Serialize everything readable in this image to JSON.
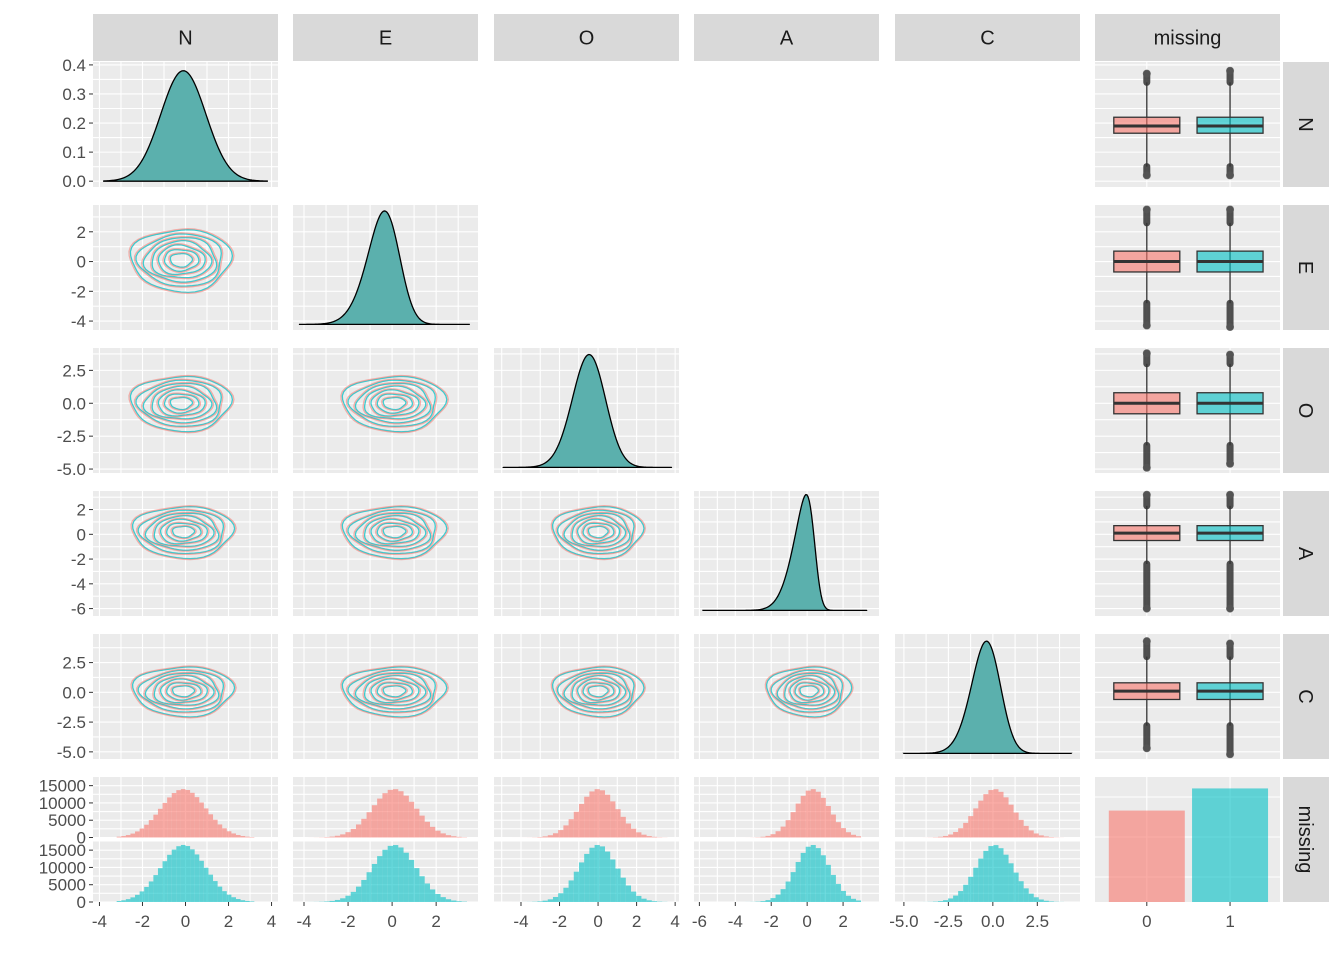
{
  "chart_data": {
    "type": "pairs",
    "variables": [
      "N",
      "E",
      "O",
      "A",
      "C",
      "missing"
    ],
    "groups": [
      "0",
      "1"
    ],
    "colors": {
      "group_0": "#F8766D",
      "group_1": "#00BFC4",
      "density_fill": "#5BB0AD",
      "panel_bg": "#EBEBEB",
      "strip_bg": "#D9D9D9",
      "grid": "#FFFFFF",
      "axis_text": "#4D4D4D",
      "strip_text": "#1A1A1A"
    },
    "grid": true,
    "legend": "none",
    "column_axes": [
      {
        "var": "N",
        "xlim": [
          -4.3,
          4.3
        ],
        "ticks": [
          -4,
          -2,
          0,
          2,
          4
        ],
        "tick_labels": [
          "-4",
          "-2",
          "0",
          "2",
          "4"
        ]
      },
      {
        "var": "E",
        "xlim": [
          -4.5,
          3.9
        ],
        "ticks": [
          -4,
          -2,
          0,
          2
        ],
        "tick_labels": [
          "-4",
          "-2",
          "0",
          "2"
        ]
      },
      {
        "var": "O",
        "xlim": [
          -5.4,
          4.2
        ],
        "ticks": [
          -4,
          -2,
          0,
          2,
          4
        ],
        "tick_labels": [
          "-4",
          "-2",
          "0",
          "2",
          "4"
        ]
      },
      {
        "var": "A",
        "xlim": [
          -6.3,
          4.0
        ],
        "ticks": [
          -6,
          -4,
          -2,
          0,
          2
        ],
        "tick_labels": [
          "-6",
          "-4",
          "-2",
          "0",
          "2"
        ]
      },
      {
        "var": "C",
        "xlim": [
          -5.5,
          4.9
        ],
        "ticks": [
          -5,
          -2.5,
          0,
          2.5
        ],
        "tick_labels": [
          "-5.0",
          "-2.5",
          "0.0",
          "2.5"
        ]
      },
      {
        "var": "missing",
        "categories": [
          "0",
          "1"
        ],
        "tick_labels": [
          "0",
          "1"
        ]
      }
    ],
    "row_axes": [
      {
        "var": "N",
        "ylim": [
          -0.02,
          0.41
        ],
        "ticks": [
          0,
          0.1,
          0.2,
          0.3,
          0.4
        ],
        "tick_labels": [
          "0.0",
          "0.1",
          "0.2",
          "0.3",
          "0.4"
        ]
      },
      {
        "var": "E",
        "ylim": [
          -4.6,
          3.8
        ],
        "ticks": [
          -4,
          -2,
          0,
          2
        ],
        "tick_labels": [
          "-4",
          "-2",
          "0",
          "2"
        ]
      },
      {
        "var": "O",
        "ylim": [
          -5.3,
          4.2
        ],
        "ticks": [
          -5,
          -2.5,
          0,
          2.5
        ],
        "tick_labels": [
          "-5.0",
          "-2.5",
          "0.0",
          "2.5"
        ]
      },
      {
        "var": "A",
        "ylim": [
          -6.6,
          3.5
        ],
        "ticks": [
          -6,
          -4,
          -2,
          0,
          2
        ],
        "tick_labels": [
          "-6",
          "-4",
          "-2",
          "0",
          "2"
        ]
      },
      {
        "var": "C",
        "ylim": [
          -5.6,
          4.9
        ],
        "ticks": [
          -5,
          -2.5,
          0,
          2.5
        ],
        "tick_labels": [
          "-5.0",
          "-2.5",
          "0.0",
          "2.5"
        ]
      },
      {
        "var": "missing",
        "ylim": [
          0,
          17500
        ],
        "ticks": [
          0,
          5000,
          10000,
          15000
        ],
        "tick_labels": [
          "0",
          "5000",
          "10000",
          "15000"
        ]
      }
    ],
    "densities": [
      {
        "var": "N",
        "mean": -0.1,
        "sd": 1.05,
        "peak": 0.38,
        "skew": 0,
        "range": [
          -3.8,
          3.8
        ]
      },
      {
        "var": "E",
        "mean": 0.2,
        "sd": 1.0,
        "peak": 3.4,
        "skew": -1.5,
        "range": [
          -4.2,
          3.5
        ]
      },
      {
        "var": "O",
        "mean": 0.0,
        "sd": 1.0,
        "peak": 3.7,
        "skew": -0.8,
        "range": [
          -4.9,
          3.8
        ]
      },
      {
        "var": "A",
        "mean": 0.4,
        "sd": 0.95,
        "peak": 3.2,
        "skew": -3.0,
        "range": [
          -5.8,
          3.3
        ]
      },
      {
        "var": "C",
        "mean": 0.2,
        "sd": 1.05,
        "peak": 4.3,
        "skew": -1.2,
        "range": [
          -5.0,
          4.4
        ]
      }
    ],
    "contours": {
      "levels": [
        0.35,
        0.55,
        0.75,
        0.95,
        1.15,
        1.35,
        1.6
      ],
      "pairs": [
        {
          "x": "N",
          "y": "E",
          "cx": -0.2,
          "cy": 0.1
        },
        {
          "x": "N",
          "y": "O",
          "cx": -0.2,
          "cy": 0.0
        },
        {
          "x": "E",
          "y": "O",
          "cx": 0.1,
          "cy": 0.0
        },
        {
          "x": "N",
          "y": "A",
          "cx": -0.1,
          "cy": 0.2
        },
        {
          "x": "E",
          "y": "A",
          "cx": 0.1,
          "cy": 0.2
        },
        {
          "x": "O",
          "y": "A",
          "cx": 0.0,
          "cy": 0.2
        },
        {
          "x": "N",
          "y": "C",
          "cx": -0.1,
          "cy": 0.1
        },
        {
          "x": "E",
          "y": "C",
          "cx": 0.1,
          "cy": 0.1
        },
        {
          "x": "O",
          "y": "C",
          "cx": 0.0,
          "cy": 0.1
        },
        {
          "x": "A",
          "y": "C",
          "cx": 0.1,
          "cy": 0.1
        }
      ]
    },
    "boxplots": [
      {
        "var": "N",
        "group_0": {
          "q1": 0.165,
          "median": 0.19,
          "q3": 0.22,
          "wlo": 0.05,
          "whi": 0.34,
          "outliers": [
            0.02,
            0.37
          ]
        },
        "group_1": {
          "q1": 0.165,
          "median": 0.19,
          "q3": 0.22,
          "wlo": 0.05,
          "whi": 0.34,
          "outliers": [
            0.02,
            0.38
          ]
        }
      },
      {
        "var": "E",
        "group_0": {
          "q1": -0.7,
          "median": 0.0,
          "q3": 0.7,
          "wlo": -2.8,
          "whi": 2.6,
          "outliers": [
            -4.3,
            3.5
          ]
        },
        "group_1": {
          "q1": -0.7,
          "median": 0.0,
          "q3": 0.7,
          "wlo": -2.8,
          "whi": 2.6,
          "outliers": [
            -4.4,
            3.5
          ]
        }
      },
      {
        "var": "O",
        "group_0": {
          "q1": -0.8,
          "median": 0.0,
          "q3": 0.8,
          "wlo": -3.2,
          "whi": 3.0,
          "outliers": [
            -4.9,
            3.8
          ]
        },
        "group_1": {
          "q1": -0.8,
          "median": 0.0,
          "q3": 0.8,
          "wlo": -3.2,
          "whi": 3.0,
          "outliers": [
            -4.6,
            3.7
          ]
        }
      },
      {
        "var": "A",
        "group_0": {
          "q1": -0.5,
          "median": 0.1,
          "q3": 0.7,
          "wlo": -2.4,
          "whi": 2.3,
          "outliers": [
            -6.0,
            3.2
          ]
        },
        "group_1": {
          "q1": -0.5,
          "median": 0.1,
          "q3": 0.7,
          "wlo": -2.4,
          "whi": 2.3,
          "outliers": [
            -6.0,
            3.2
          ]
        }
      },
      {
        "var": "C",
        "group_0": {
          "q1": -0.6,
          "median": 0.1,
          "q3": 0.8,
          "wlo": -2.8,
          "whi": 3.0,
          "outliers": [
            -4.7,
            4.3
          ]
        },
        "group_1": {
          "q1": -0.6,
          "median": 0.1,
          "q3": 0.8,
          "wlo": -2.8,
          "whi": 3.0,
          "outliers": [
            -5.2,
            4.1
          ]
        }
      }
    ],
    "histograms": {
      "group_0_peak": 14000,
      "group_1_peak": 16500,
      "vars": [
        {
          "var": "N",
          "mean": -0.1,
          "sd": 1.05,
          "range": [
            -3.2,
            3.2
          ]
        },
        {
          "var": "E",
          "mean": 0.1,
          "sd": 1.0,
          "range": [
            -3.8,
            3.4
          ]
        },
        {
          "var": "O",
          "mean": 0.0,
          "sd": 1.0,
          "range": [
            -4.5,
            3.6
          ]
        },
        {
          "var": "A",
          "mean": 0.3,
          "sd": 0.95,
          "range": [
            -5.4,
            3.0
          ]
        },
        {
          "var": "C",
          "mean": 0.1,
          "sd": 1.05,
          "range": [
            -4.5,
            4.0
          ]
        }
      ]
    },
    "bar_counts": {
      "categories": [
        "0",
        "1"
      ],
      "values": [
        12800,
        15900
      ],
      "ylim": [
        0,
        17500
      ]
    }
  }
}
